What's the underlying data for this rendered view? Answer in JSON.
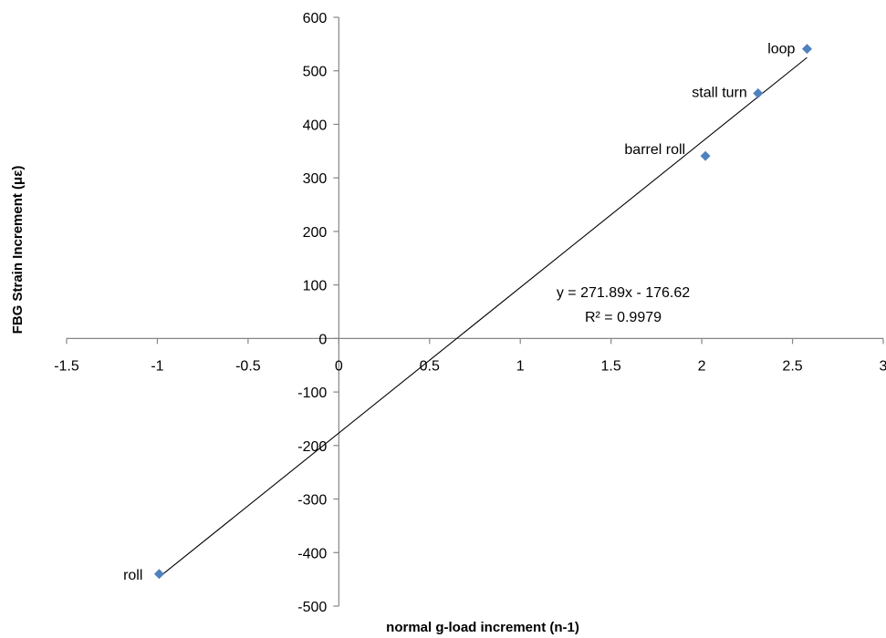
{
  "chart_data": {
    "type": "scatter",
    "title": "",
    "xlabel": "normal g-load increment (n-1)",
    "ylabel": "FBG Strain Increment (με)",
    "xlim": [
      -1.5,
      3
    ],
    "ylim": [
      -500,
      600
    ],
    "x_ticks": [
      -1.5,
      -1,
      -0.5,
      0,
      0.5,
      1,
      1.5,
      2,
      2.5,
      3
    ],
    "x_tick_labels": [
      "-1.5",
      "-1",
      "-0.5",
      "0",
      "0.5",
      "1",
      "1.5",
      "2",
      "2.5",
      "3"
    ],
    "y_ticks": [
      -500,
      -400,
      -300,
      -200,
      -100,
      0,
      100,
      200,
      300,
      400,
      500,
      600
    ],
    "y_tick_labels": [
      "-500",
      "-400",
      "-300",
      "-200",
      "-100",
      "0",
      "100",
      "200",
      "300",
      "400",
      "500",
      "600"
    ],
    "grid": false,
    "marker_color": "#4f81bd",
    "line_color": "#000000",
    "points": [
      {
        "label": "loop",
        "x": 2.58,
        "y": 541
      },
      {
        "label": "stall turn",
        "x": 2.31,
        "y": 458
      },
      {
        "label": "barrel roll",
        "x": 2.02,
        "y": 341
      },
      {
        "label": "roll",
        "x": -0.99,
        "y": -440
      }
    ],
    "trendline": {
      "slope": 271.89,
      "intercept": -176.62,
      "x_range": [
        -0.99,
        2.58
      ],
      "equation": "y = 271.89x - 176.62",
      "r_squared": "R² = 0.9979"
    }
  }
}
